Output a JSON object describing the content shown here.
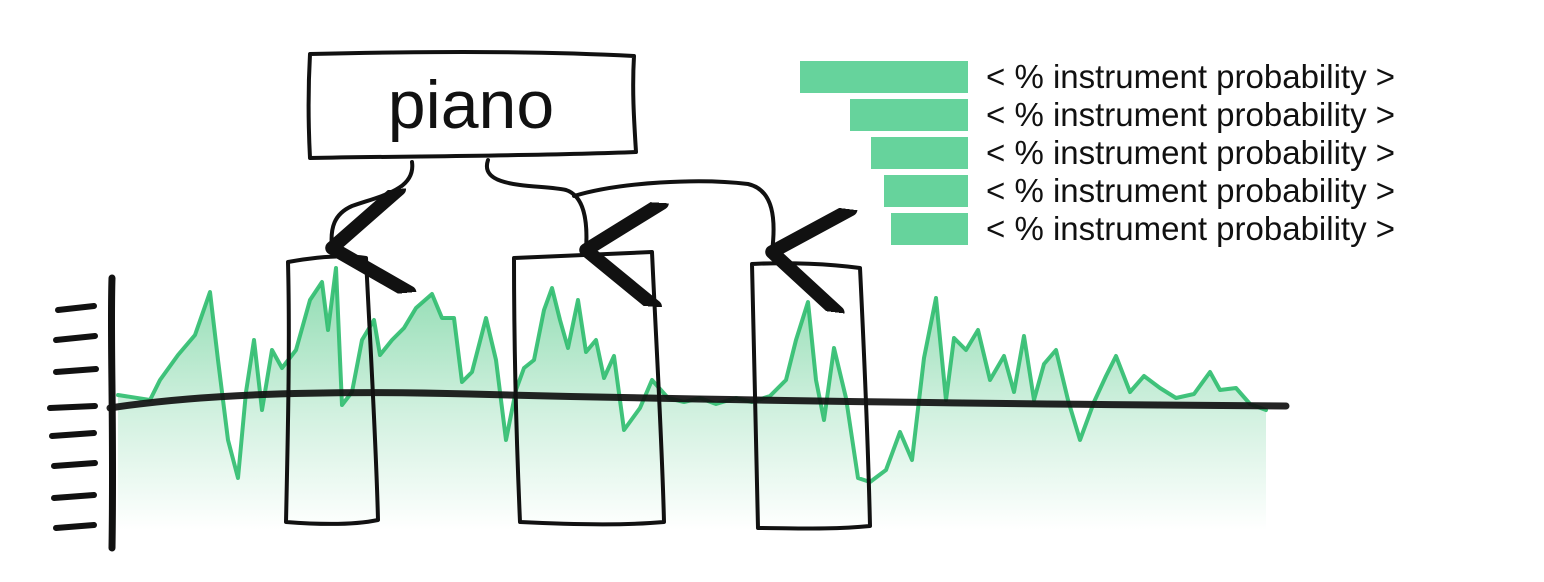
{
  "instrument_label": "piano",
  "legend": {
    "items": [
      {
        "text": "< % instrument probability >",
        "level": 1.0
      },
      {
        "text": "< % instrument probability >",
        "level": 0.7
      },
      {
        "text": "< % instrument probability >",
        "level": 0.58
      },
      {
        "text": "< % instrument probability >",
        "level": 0.5
      },
      {
        "text": "< % instrument probability >",
        "level": 0.46
      }
    ]
  },
  "colors": {
    "accent": "#66d39c",
    "waveform": "#2ebd6e",
    "trend": "#111111",
    "ink": "#111111"
  }
}
